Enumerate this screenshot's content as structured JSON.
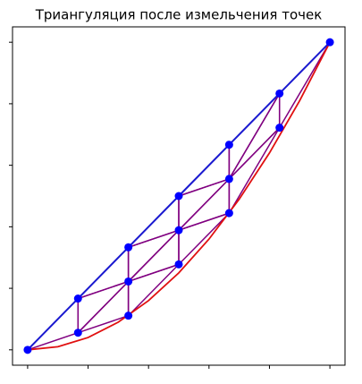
{
  "chart_data": {
    "type": "triplot",
    "title": "Триангуляция после измельчения точек",
    "x": [
      0,
      0.1667,
      0.3333,
      0.5,
      0.6667,
      0.8333,
      1,
      0.1667,
      0.3333,
      0.5,
      0.6667,
      0.8333,
      0.3333,
      0.5,
      0.6667
    ],
    "y": [
      0,
      0.1667,
      0.3333,
      0.5,
      0.6667,
      0.8333,
      1,
      0.0556,
      0.1111,
      0.2778,
      0.4444,
      0.7222,
      0.2222,
      0.3889,
      0.5556
    ],
    "triangles": [
      [
        0,
        7,
        1
      ],
      [
        7,
        8,
        12
      ],
      [
        1,
        12,
        2
      ],
      [
        7,
        12,
        1
      ],
      [
        8,
        9,
        12
      ],
      [
        9,
        10,
        13
      ],
      [
        12,
        13,
        2
      ],
      [
        9,
        13,
        12
      ],
      [
        2,
        13,
        3
      ],
      [
        13,
        10,
        14
      ],
      [
        3,
        14,
        4
      ],
      [
        13,
        14,
        3
      ],
      [
        10,
        11,
        14
      ],
      [
        11,
        6,
        5
      ],
      [
        14,
        5,
        4
      ],
      [
        11,
        5,
        14
      ]
    ],
    "boundary": [
      0,
      1,
      2,
      3,
      4,
      5,
      6
    ],
    "curve": {
      "x": [
        0,
        0.1,
        0.2,
        0.3,
        0.4,
        0.5,
        0.6,
        0.7,
        0.8,
        0.9,
        1
      ],
      "y": [
        0,
        0.01,
        0.04,
        0.09,
        0.16,
        0.25,
        0.36,
        0.49,
        0.64,
        0.81,
        1
      ]
    },
    "edge_color": "#800080",
    "boundary_color": "#1a1ad0",
    "curve_color": "#e01010",
    "point_color": "#0000ff",
    "xlim": [
      -0.05,
      1.05
    ],
    "ylim": [
      -0.05,
      1.05
    ],
    "xticks": [
      0,
      0.2,
      0.4,
      0.6,
      0.8,
      1
    ],
    "yticks": [
      0,
      0.2,
      0.4,
      0.6,
      0.8,
      1
    ]
  }
}
